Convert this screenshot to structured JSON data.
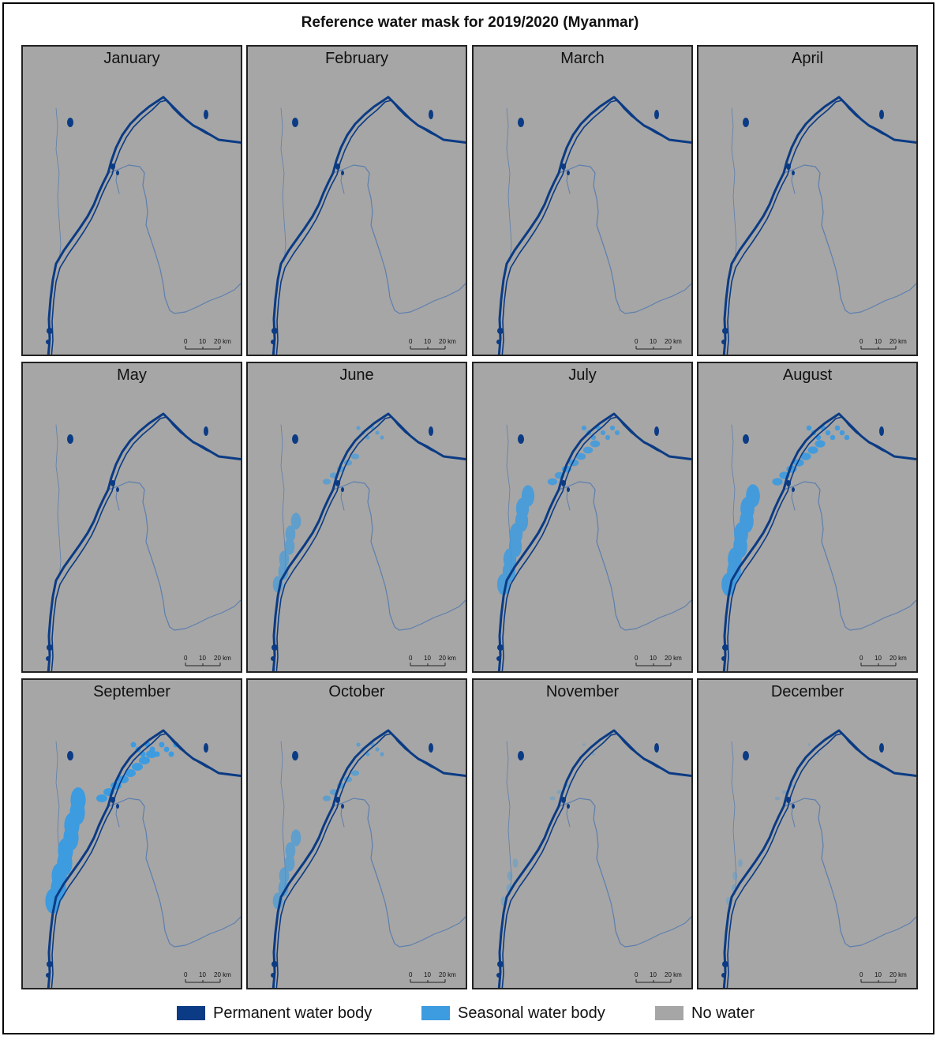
{
  "figure": {
    "title": "Reference water mask for 2019/2020 (Myanmar)"
  },
  "panels": [
    {
      "month": "January",
      "seasonal": 0.0
    },
    {
      "month": "February",
      "seasonal": 0.0
    },
    {
      "month": "March",
      "seasonal": 0.0
    },
    {
      "month": "April",
      "seasonal": 0.0
    },
    {
      "month": "May",
      "seasonal": 0.0
    },
    {
      "month": "June",
      "seasonal": 0.55
    },
    {
      "month": "July",
      "seasonal": 0.8
    },
    {
      "month": "August",
      "seasonal": 0.9
    },
    {
      "month": "September",
      "seasonal": 1.0
    },
    {
      "month": "October",
      "seasonal": 0.55
    },
    {
      "month": "November",
      "seasonal": 0.15
    },
    {
      "month": "December",
      "seasonal": 0.1
    }
  ],
  "scale_bar": {
    "ticks": [
      "0",
      "10",
      "20 km"
    ]
  },
  "legend": [
    {
      "label": "Permanent water body",
      "color": "#0b3b84"
    },
    {
      "label": "Seasonal water body",
      "color": "#3d9be0"
    },
    {
      "label": "No water",
      "color": "#a6a6a6"
    }
  ],
  "colors": {
    "permanent": "#0b3b84",
    "seasonal": "#3d9be0",
    "tributary": "#5d7fae",
    "background": "#a6a6a6"
  }
}
